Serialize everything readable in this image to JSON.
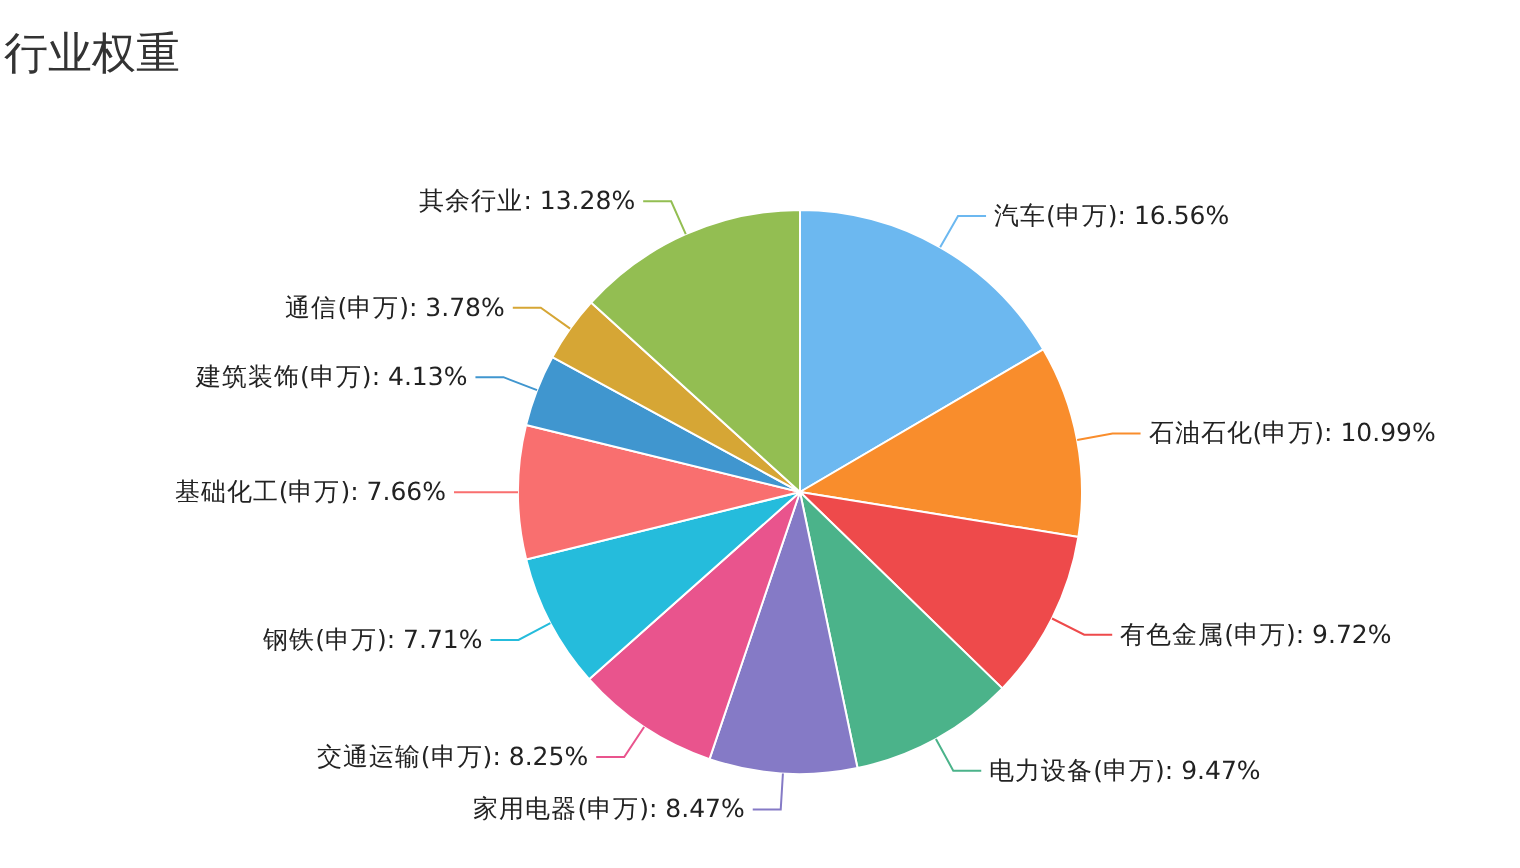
{
  "chart_data": {
    "type": "pie",
    "title": "行业权重",
    "categories": [
      "汽车(申万)",
      "石油石化(申万)",
      "有色金属(申万)",
      "电力设备(申万)",
      "家用电器(申万)",
      "交通运输(申万)",
      "钢铁(申万)",
      "基础化工(申万)",
      "建筑装饰(申万)",
      "通信(申万)",
      "其余行业"
    ],
    "values": [
      16.56,
      10.99,
      9.72,
      9.47,
      8.47,
      8.25,
      7.71,
      7.66,
      4.13,
      3.78,
      13.28
    ],
    "value_labels": [
      ": 16.56%",
      ": 10.99%",
      ": 9.72%",
      ": 9.47%",
      ": 8.47%",
      ": 8.25%",
      ": 7.71%",
      ": 7.66%",
      ": 4.13%",
      ": 3.78%",
      ": 13.28%"
    ],
    "colors": [
      "#6cb8f0",
      "#f98d2c",
      "#ee4a4b",
      "#4bb38a",
      "#857ac6",
      "#e9548d",
      "#25bcdc",
      "#f96f6f",
      "#4096cf",
      "#d6a635",
      "#93be52"
    ]
  }
}
